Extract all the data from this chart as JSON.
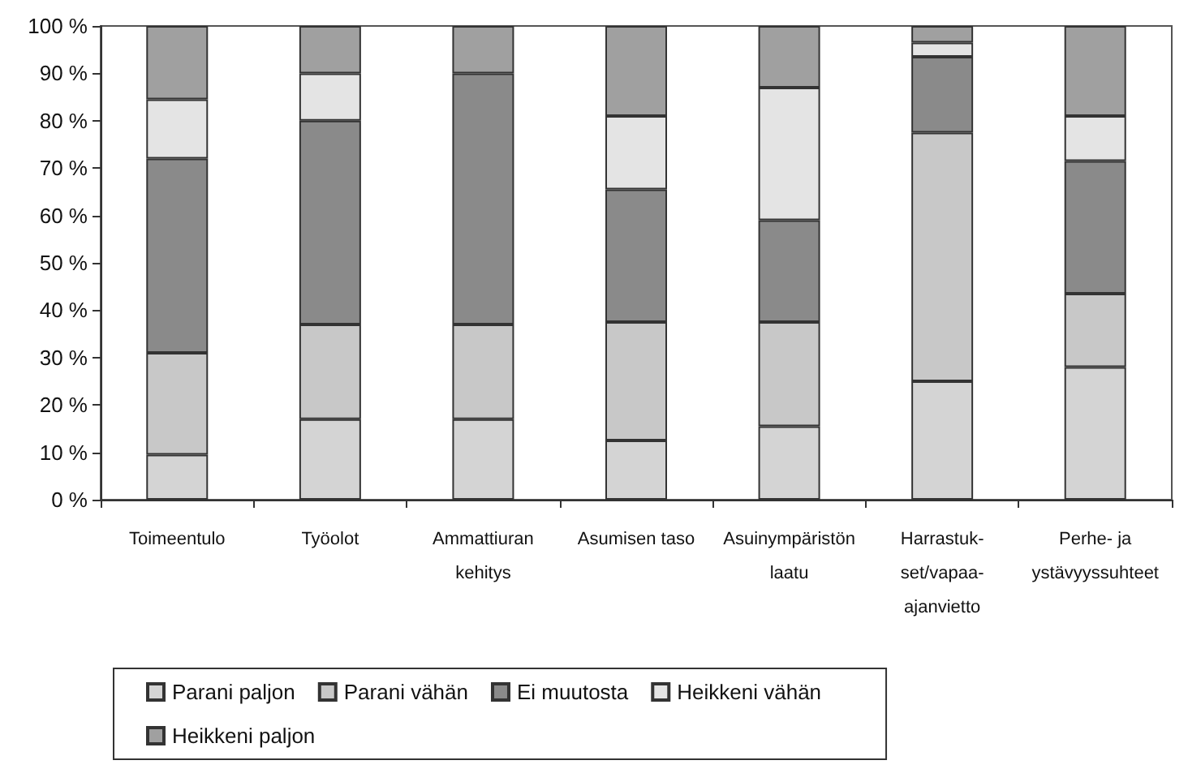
{
  "chart_data": {
    "type": "bar",
    "stacked": true,
    "categories": [
      "Toimeentulo",
      "Työolot",
      "Ammattiuran\nkehitys",
      "Asumisen taso",
      "Asuinympäristön\nlaatu",
      "Harrastuk-\nset/vapaa-\najanvietto",
      "Perhe- ja\nystävyyssuhteet"
    ],
    "series": [
      {
        "name": "Parani paljon",
        "color": "#d4d4d4",
        "values": [
          9.5,
          17,
          17,
          12.5,
          15.5,
          25,
          28
        ]
      },
      {
        "name": "Parani vähän",
        "color": "#c8c8c8",
        "values": [
          21.5,
          20,
          20,
          25,
          22,
          52.5,
          15.5
        ]
      },
      {
        "name": "Ei muutosta",
        "color": "#8a8a8a",
        "values": [
          41,
          43,
          53,
          28,
          21.5,
          16,
          28
        ]
      },
      {
        "name": "Heikkeni vähän",
        "color": "#e4e4e4",
        "values": [
          12.5,
          10,
          0,
          15.5,
          28,
          3,
          9.5
        ]
      },
      {
        "name": "Heikkeni paljon",
        "color": "#a0a0a0",
        "values": [
          15.5,
          10,
          10,
          19,
          13,
          3.5,
          19
        ]
      }
    ],
    "ylim": [
      0,
      100
    ],
    "yticks": [
      {
        "value": 0,
        "label": "0 %"
      },
      {
        "value": 10,
        "label": "10 %"
      },
      {
        "value": 20,
        "label": "20 %"
      },
      {
        "value": 30,
        "label": "30 %"
      },
      {
        "value": 40,
        "label": "40 %"
      },
      {
        "value": 50,
        "label": "50 %"
      },
      {
        "value": 60,
        "label": "60 %"
      },
      {
        "value": 70,
        "label": "70 %"
      },
      {
        "value": 80,
        "label": "80 %"
      },
      {
        "value": 90,
        "label": "90 %"
      },
      {
        "value": 100,
        "label": "100 %"
      }
    ],
    "grid": false,
    "legend": "bottom"
  }
}
